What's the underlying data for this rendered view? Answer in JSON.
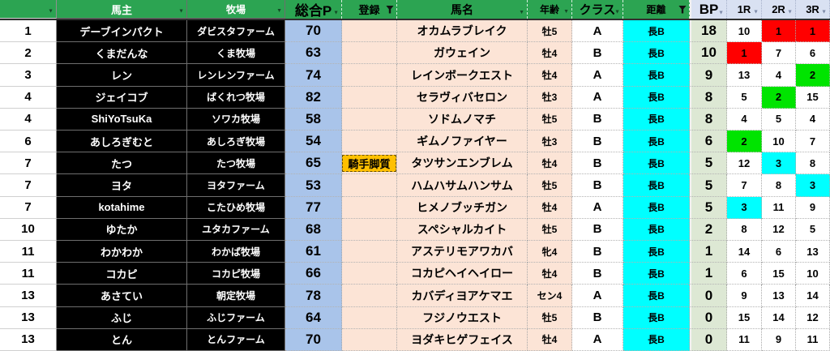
{
  "table": {
    "columns": [
      {
        "key": "rank",
        "label": "",
        "section": "green",
        "filter": "dropdown"
      },
      {
        "key": "owner",
        "label": "馬主",
        "section": "green",
        "filter": "dropdown"
      },
      {
        "key": "farm",
        "label": "牧場",
        "section": "green",
        "filter": "dropdown"
      },
      {
        "key": "sp",
        "label": "総合P",
        "section": "green",
        "filter": "dropdown"
      },
      {
        "key": "reg",
        "label": "登録",
        "section": "green",
        "filter": "funnel"
      },
      {
        "key": "name",
        "label": "馬名",
        "section": "green",
        "filter": "dropdown"
      },
      {
        "key": "age",
        "label": "年齢",
        "section": "green",
        "filter": "dropdown"
      },
      {
        "key": "cls",
        "label": "クラス",
        "section": "green",
        "filter": "dropdown"
      },
      {
        "key": "dist",
        "label": "距離",
        "section": "green",
        "filter": "funnel"
      },
      {
        "key": "bp",
        "label": "BP",
        "section": "blue",
        "filter": "dropdown"
      },
      {
        "key": "r1",
        "label": "1R",
        "section": "blue",
        "filter": "dropdown"
      },
      {
        "key": "r2",
        "label": "2R",
        "section": "blue",
        "filter": "dropdown"
      },
      {
        "key": "r3",
        "label": "3R",
        "section": "blue",
        "filter": "dropdown"
      }
    ],
    "rows": [
      {
        "rank": "1",
        "owner": "デーブインパクト",
        "farm": "ダビスタファーム",
        "sp": "70",
        "reg": "",
        "name": "オカムラブレイク",
        "age": "牡5",
        "cls": "A",
        "dist": "長B",
        "bp": "18",
        "r1": "10",
        "r2": "1",
        "r3": "1"
      },
      {
        "rank": "2",
        "owner": "くまだんな",
        "farm": "くま牧場",
        "sp": "63",
        "reg": "",
        "name": "ガウェイン",
        "age": "牡4",
        "cls": "B",
        "dist": "長B",
        "bp": "10",
        "r1": "1",
        "r2": "7",
        "r3": "6"
      },
      {
        "rank": "3",
        "owner": "レン",
        "farm": "レンレンファーム",
        "sp": "74",
        "reg": "",
        "name": "レインボークエスト",
        "age": "牡4",
        "cls": "A",
        "dist": "長B",
        "bp": "9",
        "r1": "13",
        "r2": "4",
        "r3": "2"
      },
      {
        "rank": "4",
        "owner": "ジェイコブ",
        "farm": "ばくれつ牧場",
        "sp": "82",
        "reg": "",
        "name": "セラヴィバセロン",
        "age": "牡3",
        "cls": "A",
        "dist": "長B",
        "bp": "8",
        "r1": "5",
        "r2": "2",
        "r3": "15"
      },
      {
        "rank": "4",
        "owner": "ShiYoTsuKa",
        "farm": "ソワカ牧場",
        "sp": "58",
        "reg": "",
        "name": "ソドムノマチ",
        "age": "牡5",
        "cls": "B",
        "dist": "長B",
        "bp": "8",
        "r1": "4",
        "r2": "5",
        "r3": "4"
      },
      {
        "rank": "6",
        "owner": "あしろぎむと",
        "farm": "あしろぎ牧場",
        "sp": "54",
        "reg": "",
        "name": "ギムノファイヤー",
        "age": "牡3",
        "cls": "B",
        "dist": "長B",
        "bp": "6",
        "r1": "2",
        "r2": "10",
        "r3": "7"
      },
      {
        "rank": "7",
        "owner": "たつ",
        "farm": "たつ牧場",
        "sp": "65",
        "reg": "騎手脚質",
        "name": "タツサンエンブレム",
        "age": "牡4",
        "cls": "B",
        "dist": "長B",
        "bp": "5",
        "r1": "12",
        "r2": "3",
        "r3": "8"
      },
      {
        "rank": "7",
        "owner": "ヨタ",
        "farm": "ヨタファーム",
        "sp": "53",
        "reg": "",
        "name": "ハムハサムハンサム",
        "age": "牡5",
        "cls": "B",
        "dist": "長B",
        "bp": "5",
        "r1": "7",
        "r2": "8",
        "r3": "3"
      },
      {
        "rank": "7",
        "owner": "kotahime",
        "farm": "こたひめ牧場",
        "sp": "77",
        "reg": "",
        "name": "ヒメノブッチガン",
        "age": "牡4",
        "cls": "A",
        "dist": "長B",
        "bp": "5",
        "r1": "3",
        "r2": "11",
        "r3": "9"
      },
      {
        "rank": "10",
        "owner": "ゆたか",
        "farm": "ユタカファーム",
        "sp": "68",
        "reg": "",
        "name": "スペシャルカイト",
        "age": "牡5",
        "cls": "B",
        "dist": "長B",
        "bp": "2",
        "r1": "8",
        "r2": "12",
        "r3": "5"
      },
      {
        "rank": "11",
        "owner": "わかわか",
        "farm": "わかば牧場",
        "sp": "61",
        "reg": "",
        "name": "アステリモアワカバ",
        "age": "牝4",
        "cls": "B",
        "dist": "長B",
        "bp": "1",
        "r1": "14",
        "r2": "6",
        "r3": "13"
      },
      {
        "rank": "11",
        "owner": "コカピ",
        "farm": "コカピ牧場",
        "sp": "66",
        "reg": "",
        "name": "コカピヘイヘイロー",
        "age": "牡4",
        "cls": "B",
        "dist": "長B",
        "bp": "1",
        "r1": "6",
        "r2": "15",
        "r3": "10"
      },
      {
        "rank": "13",
        "owner": "あさてい",
        "farm": "朝定牧場",
        "sp": "78",
        "reg": "",
        "name": "カバディヨアケマエ",
        "age": "セン4",
        "cls": "A",
        "dist": "長B",
        "bp": "0",
        "r1": "9",
        "r2": "13",
        "r3": "14"
      },
      {
        "rank": "13",
        "owner": "ふじ",
        "farm": "ふじファーム",
        "sp": "64",
        "reg": "",
        "name": "フジノウエスト",
        "age": "牡5",
        "cls": "B",
        "dist": "長B",
        "bp": "0",
        "r1": "15",
        "r2": "14",
        "r3": "12"
      },
      {
        "rank": "13",
        "owner": "とん",
        "farm": "とんファーム",
        "sp": "70",
        "reg": "",
        "name": "ヨダキヒゲフェイス",
        "age": "牡4",
        "cls": "A",
        "dist": "長B",
        "bp": "0",
        "r1": "11",
        "r2": "9",
        "r3": "11"
      }
    ],
    "colors": {
      "header_green": "#2ca452",
      "header_blue": "#d9e1f2",
      "owner_bg": "#000000",
      "sp_bg": "#a9c4ea",
      "peach_bg": "#fce4d6",
      "dist_bg": "#00ffff",
      "bp_bg": "#dde8d4",
      "reg_badge_bg": "#ffc000",
      "rank1": "#ff0000",
      "rank2": "#00e400",
      "rank3": "#00ffff"
    }
  }
}
